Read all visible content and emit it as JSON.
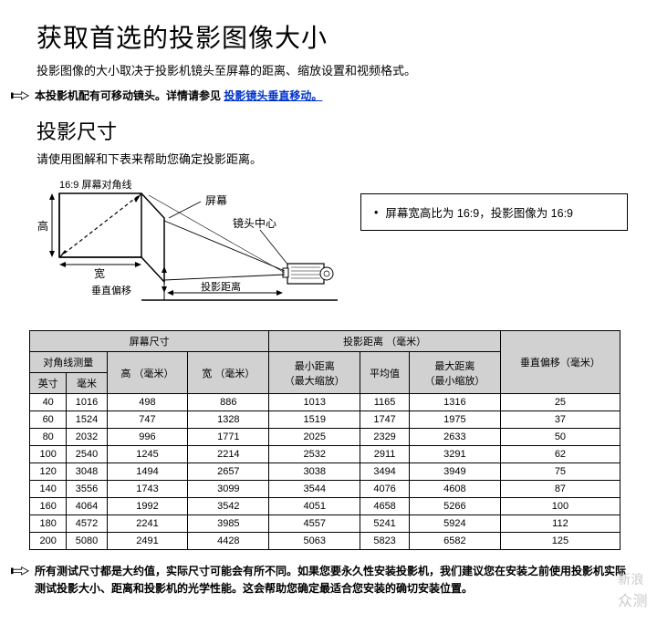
{
  "title": "获取首选的投影图像大小",
  "intro": "投影图像的大小取决于投影机镜头至屏幕的距离、缩放设置和视频格式。",
  "note1_prefix": "本投影机配有可移动镜头。详情请参见 ",
  "note1_link": "投影镜头垂直移动。",
  "section": "投影尺寸",
  "section_desc": "请使用图解和下表来帮助您确定投影距离。",
  "diagram": {
    "diag_label": "16:9 屏幕对角线",
    "height": "高",
    "width": "宽",
    "voffset": "垂直偏移",
    "screen": "屏幕",
    "lens_center": "镜头中心",
    "proj_dist": "投影距离"
  },
  "ratio_box": "屏幕宽高比为 16:9，投影图像为 16:9",
  "table": {
    "header_screen": "屏幕尺寸",
    "header_dist": "投影距离 （毫米）",
    "header_voffset": "垂直偏移（毫米）",
    "header_diag": "对角线测量",
    "header_h": "高 （毫米）",
    "header_w": "宽 （毫米）",
    "header_min": "最小距离",
    "header_min2": "（最大缩放）",
    "header_avg": "平均值",
    "header_max": "最大距离",
    "header_max2": "（最小缩放）",
    "header_inch": "英寸",
    "header_mm": "毫米",
    "rows": [
      [
        "40",
        "1016",
        "498",
        "886",
        "1013",
        "1165",
        "1316",
        "25"
      ],
      [
        "60",
        "1524",
        "747",
        "1328",
        "1519",
        "1747",
        "1975",
        "37"
      ],
      [
        "80",
        "2032",
        "996",
        "1771",
        "2025",
        "2329",
        "2633",
        "50"
      ],
      [
        "100",
        "2540",
        "1245",
        "2214",
        "2532",
        "2911",
        "3291",
        "62"
      ],
      [
        "120",
        "3048",
        "1494",
        "2657",
        "3038",
        "3494",
        "3949",
        "75"
      ],
      [
        "140",
        "3556",
        "1743",
        "3099",
        "3544",
        "4076",
        "4608",
        "87"
      ],
      [
        "160",
        "4064",
        "1992",
        "3542",
        "4051",
        "4658",
        "5266",
        "100"
      ],
      [
        "180",
        "4572",
        "2241",
        "3985",
        "4557",
        "5241",
        "5924",
        "112"
      ],
      [
        "200",
        "5080",
        "2491",
        "4428",
        "5063",
        "5823",
        "6582",
        "125"
      ]
    ]
  },
  "footer": "所有测试尺寸都是大约值，实际尺寸可能会有所不同。如果您要永久性安装投影机，我们建议您在安装之前使用投影机实际测试投影大小、距离和投影机的光学性能。这会帮助您确定最适合您安装的确切安装位置。",
  "watermark1": "新浪",
  "watermark2": "众测"
}
